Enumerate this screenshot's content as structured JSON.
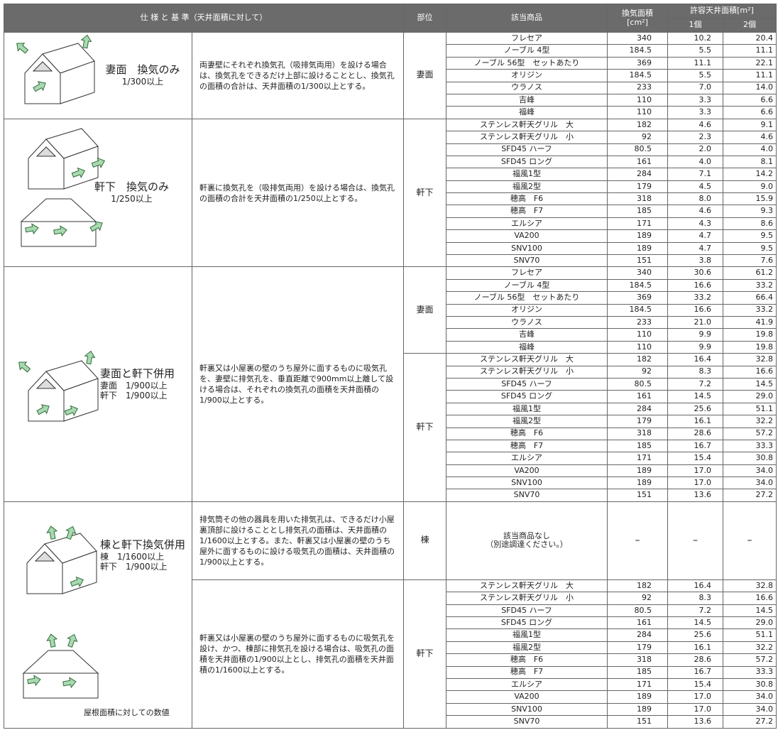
{
  "header": {
    "spec": "仕 様 と 基 準（天井面積に対して）",
    "part": "部位",
    "product": "該当商品",
    "area": "換気面積",
    "area_unit": "[cm²]",
    "allowed": "許容天井面積[m²]",
    "one": "1個",
    "two": "2個"
  },
  "sections": [
    {
      "title": "妻面　換気のみ",
      "lines": [
        "1/300以上"
      ],
      "blocks": [
        {
          "description": "両妻壁にそれぞれ換気孔（吸排気両用）を設ける場合は、換気孔をできるだけ上部に設けることとし、換気孔の面積の合計は、天井面積の1/300以上とする。",
          "groups": [
            {
              "part": "妻面",
              "rows": [
                [
                  "フレセア",
                  "340",
                  "10.2",
                  "20.4"
                ],
                [
                  "ノーブル 4型",
                  "184.5",
                  "5.5",
                  "11.1"
                ],
                [
                  "ノーブル 56型　セットあたり",
                  "369",
                  "11.1",
                  "22.1"
                ],
                [
                  "オリジン",
                  "184.5",
                  "5.5",
                  "11.1"
                ],
                [
                  "ウラノス",
                  "233",
                  "7.0",
                  "14.0"
                ],
                [
                  "吉峰",
                  "110",
                  "3.3",
                  "6.6"
                ],
                [
                  "福峰",
                  "110",
                  "3.3",
                  "6.6"
                ]
              ]
            }
          ]
        }
      ]
    },
    {
      "title": "軒下　換気のみ",
      "lines": [
        "1/250以上"
      ],
      "blocks": [
        {
          "description": "軒裏に換気孔を（吸排気両用）を設ける場合は、換気孔の面積の合計を天井面積の1/250以上とする。",
          "groups": [
            {
              "part": "軒下",
              "rows": [
                [
                  "ステンレス軒天グリル　大",
                  "182",
                  "4.6",
                  "9.1"
                ],
                [
                  "ステンレス軒天グリル　小",
                  "92",
                  "2.3",
                  "4.6"
                ],
                [
                  "SFD45 ハーフ",
                  "80.5",
                  "2.0",
                  "4.0"
                ],
                [
                  "SFD45 ロング",
                  "161",
                  "4.0",
                  "8.1"
                ],
                [
                  "福風1型",
                  "284",
                  "7.1",
                  "14.2"
                ],
                [
                  "福風2型",
                  "179",
                  "4.5",
                  "9.0"
                ],
                [
                  "穂高　F6",
                  "318",
                  "8.0",
                  "15.9"
                ],
                [
                  "穂高　F7",
                  "185",
                  "4.6",
                  "9.3"
                ],
                [
                  "エルシア",
                  "171",
                  "4.3",
                  "8.6"
                ],
                [
                  "VA200",
                  "189",
                  "4.7",
                  "9.5"
                ],
                [
                  "SNV100",
                  "189",
                  "4.7",
                  "9.5"
                ],
                [
                  "SNV70",
                  "151",
                  "3.8",
                  "7.6"
                ]
              ]
            }
          ]
        }
      ]
    },
    {
      "title": "妻面と軒下併用",
      "lines": [
        "妻面　1/900以上",
        "軒下　1/900以上"
      ],
      "blocks": [
        {
          "description": "軒裏又は小屋裏の壁のうち屋外に面するものに吸気孔を、妻壁に排気孔を、垂直距離で900mm以上離して設ける場合は、それぞれの換気孔の面積を天井面積の1/900以上とする。",
          "groups": [
            {
              "part": "妻面",
              "rows": [
                [
                  "フレセア",
                  "340",
                  "30.6",
                  "61.2"
                ],
                [
                  "ノーブル 4型",
                  "184.5",
                  "16.6",
                  "33.2"
                ],
                [
                  "ノーブル 56型　セットあたり",
                  "369",
                  "33.2",
                  "66.4"
                ],
                [
                  "オリジン",
                  "184.5",
                  "16.6",
                  "33.2"
                ],
                [
                  "ウラノス",
                  "233",
                  "21.0",
                  "41.9"
                ],
                [
                  "吉峰",
                  "110",
                  "9.9",
                  "19.8"
                ],
                [
                  "福峰",
                  "110",
                  "9.9",
                  "19.8"
                ]
              ]
            },
            {
              "part": "軒下",
              "rows": [
                [
                  "ステンレス軒天グリル　大",
                  "182",
                  "16.4",
                  "32.8"
                ],
                [
                  "ステンレス軒天グリル　小",
                  "92",
                  "8.3",
                  "16.6"
                ],
                [
                  "SFD45 ハーフ",
                  "80.5",
                  "7.2",
                  "14.5"
                ],
                [
                  "SFD45 ロング",
                  "161",
                  "14.5",
                  "29.0"
                ],
                [
                  "福風1型",
                  "284",
                  "25.6",
                  "51.1"
                ],
                [
                  "福風2型",
                  "179",
                  "16.1",
                  "32.2"
                ],
                [
                  "穂高　F6",
                  "318",
                  "28.6",
                  "57.2"
                ],
                [
                  "穂高　F7",
                  "185",
                  "16.7",
                  "33.3"
                ],
                [
                  "エルシア",
                  "171",
                  "15.4",
                  "30.8"
                ],
                [
                  "VA200",
                  "189",
                  "17.0",
                  "34.0"
                ],
                [
                  "SNV100",
                  "189",
                  "17.0",
                  "34.0"
                ],
                [
                  "SNV70",
                  "151",
                  "13.6",
                  "27.2"
                ]
              ]
            }
          ]
        }
      ]
    },
    {
      "title": "棟と軒下換気併用",
      "lines": [
        "棟　1/1600以上",
        "軒下　1/900以上"
      ],
      "note": "屋根面積に対しての数値",
      "blocks": [
        {
          "description": "排気筒その他の器具を用いた排気孔は、できるだけ小屋裏頂部に設けることとし排気孔の面積は、天井面積の1/1600以上とする。また、軒裏又は小屋裏の壁のうち屋外に面するものに設ける吸気孔の面積は、天井面積の1/900以上とする。",
          "groups": [
            {
              "part": "棟",
              "rows": [
                [
                  [
                    "該当商品なし",
                    "（別途調達ください。）"
                  ],
                  "–",
                  "–",
                  "–"
                ]
              ]
            }
          ]
        },
        {
          "description": "軒裏又は小屋裏の壁のうち屋外に面するものに吸気孔を設け、かつ、棟部に排気孔を設ける場合は、吸気孔の面積を天井面積の1/900以上とし、排気孔の面積を天井面積の1/1600以上とする。",
          "groups": [
            {
              "part": "軒下",
              "rows": [
                [
                  "ステンレス軒天グリル　大",
                  "182",
                  "16.4",
                  "32.8"
                ],
                [
                  "ステンレス軒天グリル　小",
                  "92",
                  "8.3",
                  "16.6"
                ],
                [
                  "SFD45 ハーフ",
                  "80.5",
                  "7.2",
                  "14.5"
                ],
                [
                  "SFD45 ロング",
                  "161",
                  "14.5",
                  "29.0"
                ],
                [
                  "福風1型",
                  "284",
                  "25.6",
                  "51.1"
                ],
                [
                  "福風2型",
                  "179",
                  "16.1",
                  "32.2"
                ],
                [
                  "穂高　F6",
                  "318",
                  "28.6",
                  "57.2"
                ],
                [
                  "穂高　F7",
                  "185",
                  "16.7",
                  "33.3"
                ],
                [
                  "エルシア",
                  "171",
                  "15.4",
                  "30.8"
                ],
                [
                  "VA200",
                  "189",
                  "17.0",
                  "34.0"
                ],
                [
                  "SNV100",
                  "189",
                  "17.0",
                  "34.0"
                ],
                [
                  "SNV70",
                  "151",
                  "13.6",
                  "27.2"
                ]
              ]
            }
          ]
        }
      ]
    }
  ]
}
